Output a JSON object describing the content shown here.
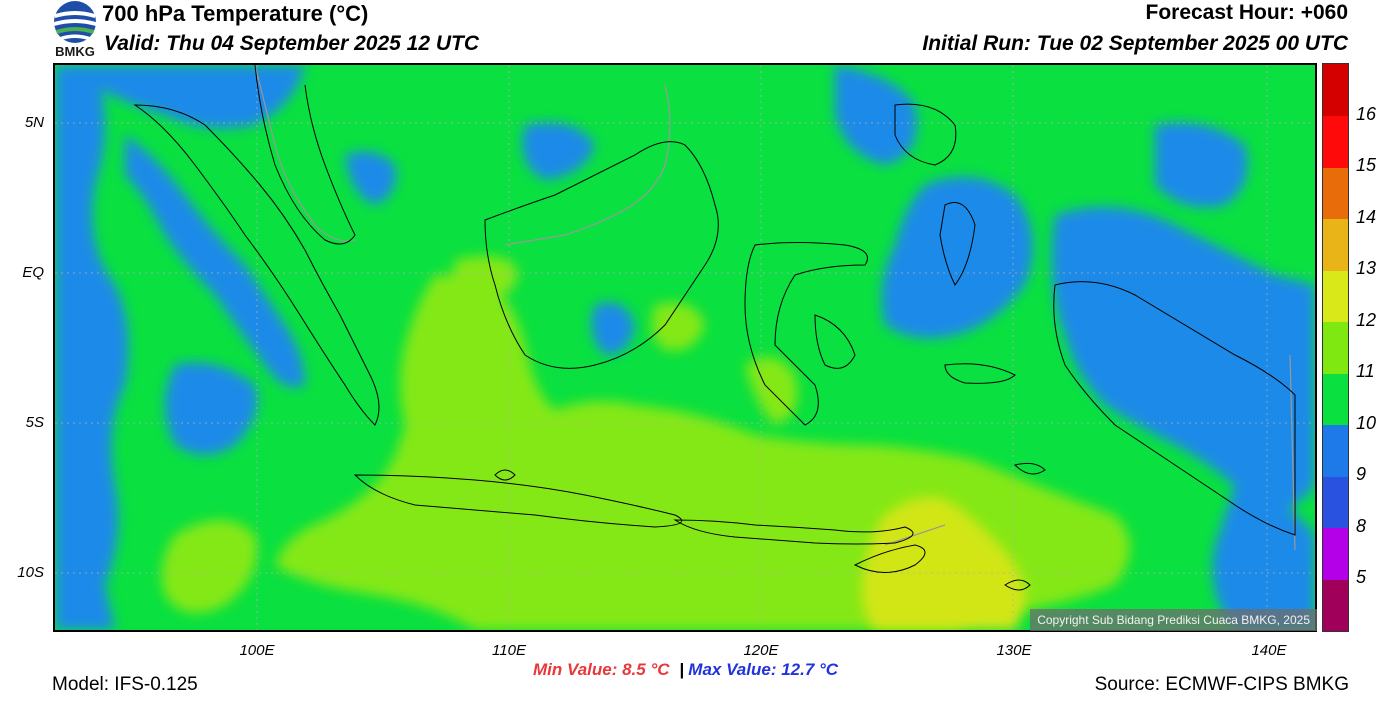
{
  "header": {
    "title": "700 hPa Temperature (°C)",
    "valid": "Valid: Thu 04 September 2025 12 UTC",
    "forecast_hour": "Forecast Hour: +060",
    "initial_run": "Initial Run: Tue 02 September 2025 00 UTC"
  },
  "logo": {
    "text": "BMKG"
  },
  "axes": {
    "y_labels": [
      "5N",
      "EQ",
      "5S",
      "10S"
    ],
    "x_labels": [
      "100E",
      "110E",
      "120E",
      "130E",
      "140E"
    ]
  },
  "colorbar": {
    "labels": [
      "16",
      "15",
      "14",
      "13",
      "12",
      "11",
      "10",
      "9",
      "8",
      "5"
    ],
    "colors": [
      "#a0005a",
      "#b400e8",
      "#2a52e0",
      "#1e7ae8",
      "#0ae040",
      "#7ee810",
      "#d8e818",
      "#e8b418",
      "#e86c0a",
      "#ff0a0a",
      "#d40000"
    ]
  },
  "map_colors": {
    "background": "#0ae040",
    "cold": "#1e8ae8",
    "warm": "#84e814",
    "warmer": "#d2e618",
    "coast": "#000000",
    "border": "#999999"
  },
  "copyright": "Copyright Sub Bidang Prediksi Cuaca BMKG, 2025",
  "minmax": {
    "min": "Min Value: 8.5 °C",
    "separator": "|",
    "max": "Max Value: 12.7 °C"
  },
  "footer": {
    "model": "Model: IFS-0.125",
    "source": "Source: ECMWF-CIPS BMKG"
  }
}
